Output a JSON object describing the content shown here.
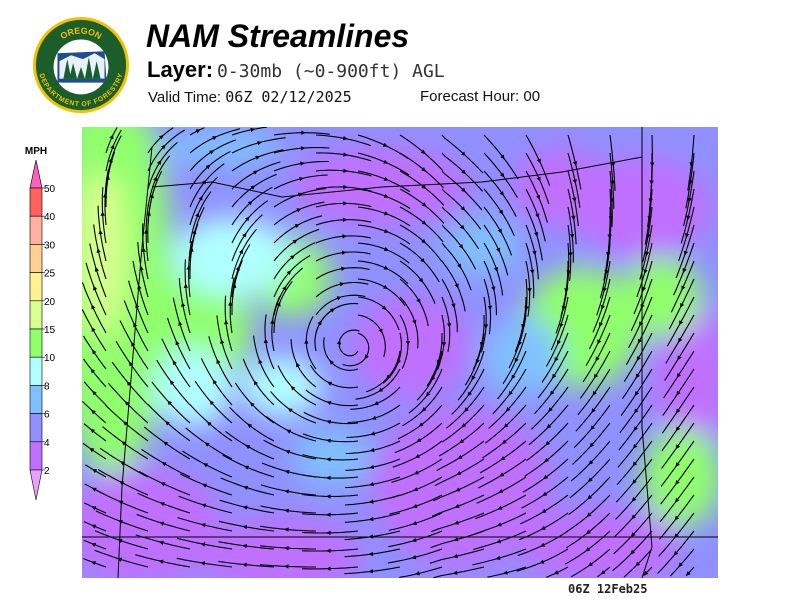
{
  "header": {
    "title": "NAM Streamlines",
    "layer_label": "Layer:",
    "layer_value": "0-30mb (~0-900ft) AGL",
    "valid_label": "Valid Time:",
    "valid_value": "06Z 02/12/2025",
    "forecast_label": "Forecast Hour:",
    "forecast_value": "00"
  },
  "logo": {
    "top_text": "OREGON",
    "bottom_text": "DEPARTMENT OF FORESTRY",
    "colors": {
      "ring": "#f2c200",
      "field": "#1b5e2c",
      "sky": "#1f4f8a"
    }
  },
  "legend": {
    "unit": "MPH",
    "levels": [
      {
        "label": "50",
        "color": "#ff6060"
      },
      {
        "label": "40",
        "color": "#ffb0a0"
      },
      {
        "label": "30",
        "color": "#ffd090"
      },
      {
        "label": "25",
        "color": "#fff090"
      },
      {
        "label": "20",
        "color": "#d8ff90"
      },
      {
        "label": "15",
        "color": "#90ff6c"
      },
      {
        "label": "10",
        "color": "#b0ffff"
      },
      {
        "label": "8",
        "color": "#80c0ff"
      },
      {
        "label": "6",
        "color": "#9090ff"
      },
      {
        "label": "4",
        "color": "#c070ff"
      },
      {
        "label": "2",
        "color": "#e8a0ff"
      }
    ],
    "over_color": "#ff60c0",
    "under_color": "#e8a0ff"
  },
  "map": {
    "timestamp": "06Z 12Feb25",
    "streamline_color": "#000000"
  }
}
